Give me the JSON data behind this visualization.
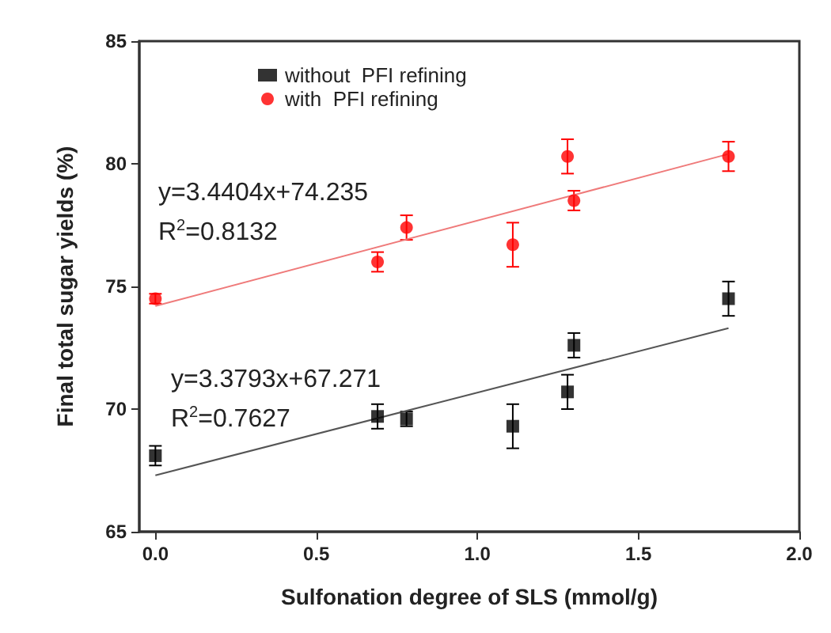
{
  "chart_data": {
    "type": "scatter",
    "xlabel": "Sulfonation degree of SLS (mmol/g)",
    "ylabel": "Final total sugar yields (%)",
    "x": [
      0,
      0.69,
      0.78,
      1.11,
      1.28,
      1.3,
      1.78
    ],
    "series": [
      {
        "name": "without  PFI refining",
        "color": "#000000",
        "marker": "square",
        "values": [
          68.1,
          69.7,
          69.6,
          69.3,
          70.7,
          72.6,
          74.5
        ],
        "errors": [
          0.4,
          0.5,
          0.3,
          0.9,
          0.7,
          0.5,
          0.7
        ]
      },
      {
        "name": "with  PFI refining",
        "color": "#ff0000",
        "marker": "circle",
        "values": [
          74.5,
          76.0,
          77.4,
          76.7,
          80.3,
          78.5,
          80.3
        ],
        "errors": [
          0.2,
          0.4,
          0.5,
          0.9,
          0.7,
          0.4,
          0.6
        ]
      },
      {
        "type": "line",
        "color": "#ef7a7a",
        "marker": "none",
        "values": [
          74.2,
          null,
          null,
          null,
          null,
          null,
          80.4
        ]
      },
      {
        "type": "line",
        "color": "#555555",
        "marker": "none",
        "values": [
          67.3,
          null,
          null,
          null,
          null,
          null,
          73.3
        ]
      }
    ],
    "annotations": [
      "y=3.4404x+74.235",
      "R$^{2}$=0.8132",
      "y=3.3793x+67.271",
      "R$^{2}$=0.7627"
    ],
    "xlim": [
      -0.05,
      2.0
    ],
    "xticks": [
      {
        "value": 0,
        "label": "0.0"
      },
      {
        "value": 0.5,
        "label": "0.5"
      },
      {
        "value": 1,
        "label": "1.0"
      },
      {
        "value": 1.5,
        "label": "1.5"
      },
      {
        "value": 2,
        "label": "2.0"
      }
    ],
    "ylim": [
      65,
      85
    ],
    "yticks": [
      65,
      70,
      75,
      80,
      85
    ],
    "grid": false,
    "legend": "top"
  }
}
